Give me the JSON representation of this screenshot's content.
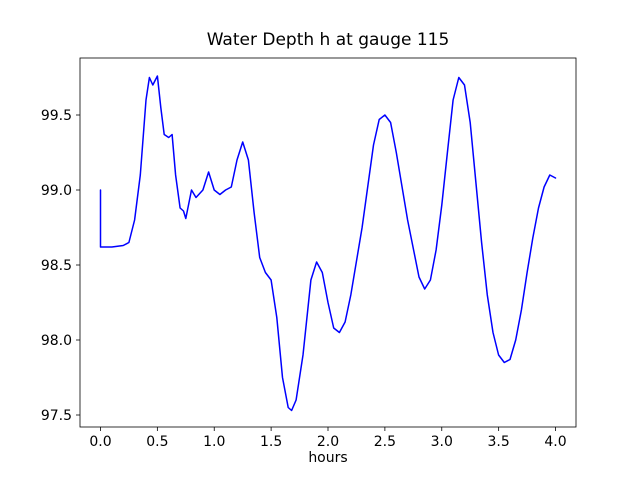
{
  "chart_data": {
    "type": "line",
    "title": "Water Depth h at gauge 115",
    "xlabel": "hours",
    "ylabel": "",
    "series_name": "water depth h",
    "line_color": "#0000ff",
    "line_width": 1.5,
    "grid": false,
    "legend": null,
    "xlim": [
      -0.18,
      4.18
    ],
    "ylim": [
      97.42,
      99.88
    ],
    "xticks": [
      0.0,
      0.5,
      1.0,
      1.5,
      2.0,
      2.5,
      3.0,
      3.5,
      4.0
    ],
    "xtick_labels": [
      "0.0",
      "0.5",
      "1.0",
      "1.5",
      "2.0",
      "2.5",
      "3.0",
      "3.5",
      "4.0"
    ],
    "yticks": [
      97.5,
      98.0,
      98.5,
      99.0,
      99.5
    ],
    "ytick_labels": [
      "97.5",
      "98.0",
      "98.5",
      "99.0",
      "99.5"
    ],
    "x": [
      0.0,
      0.0,
      0.1,
      0.2,
      0.25,
      0.3,
      0.35,
      0.4,
      0.43,
      0.46,
      0.5,
      0.53,
      0.56,
      0.6,
      0.63,
      0.66,
      0.7,
      0.73,
      0.75,
      0.8,
      0.84,
      0.9,
      0.95,
      1.0,
      1.05,
      1.1,
      1.15,
      1.2,
      1.25,
      1.3,
      1.35,
      1.4,
      1.45,
      1.5,
      1.55,
      1.6,
      1.65,
      1.68,
      1.72,
      1.78,
      1.85,
      1.9,
      1.95,
      2.0,
      2.05,
      2.1,
      2.15,
      2.2,
      2.3,
      2.4,
      2.45,
      2.5,
      2.55,
      2.6,
      2.7,
      2.8,
      2.85,
      2.9,
      2.95,
      3.0,
      3.05,
      3.1,
      3.15,
      3.2,
      3.25,
      3.3,
      3.35,
      3.4,
      3.45,
      3.5,
      3.55,
      3.6,
      3.65,
      3.7,
      3.75,
      3.8,
      3.85,
      3.9,
      3.95,
      4.0
    ],
    "y": [
      99.0,
      98.62,
      98.62,
      98.63,
      98.65,
      98.8,
      99.1,
      99.6,
      99.75,
      99.7,
      99.76,
      99.55,
      99.37,
      99.35,
      99.37,
      99.1,
      98.88,
      98.86,
      98.81,
      99.0,
      98.95,
      99.0,
      99.12,
      99.0,
      98.97,
      99.0,
      99.02,
      99.2,
      99.32,
      99.2,
      98.85,
      98.55,
      98.45,
      98.4,
      98.15,
      97.75,
      97.55,
      97.53,
      97.6,
      97.9,
      98.4,
      98.52,
      98.45,
      98.25,
      98.08,
      98.05,
      98.12,
      98.3,
      98.75,
      99.3,
      99.47,
      99.5,
      99.45,
      99.25,
      98.8,
      98.42,
      98.34,
      98.4,
      98.6,
      98.9,
      99.25,
      99.6,
      99.75,
      99.7,
      99.45,
      99.05,
      98.65,
      98.3,
      98.05,
      97.9,
      97.85,
      97.87,
      98.0,
      98.2,
      98.45,
      98.68,
      98.88,
      99.02,
      99.1,
      99.08
    ]
  }
}
